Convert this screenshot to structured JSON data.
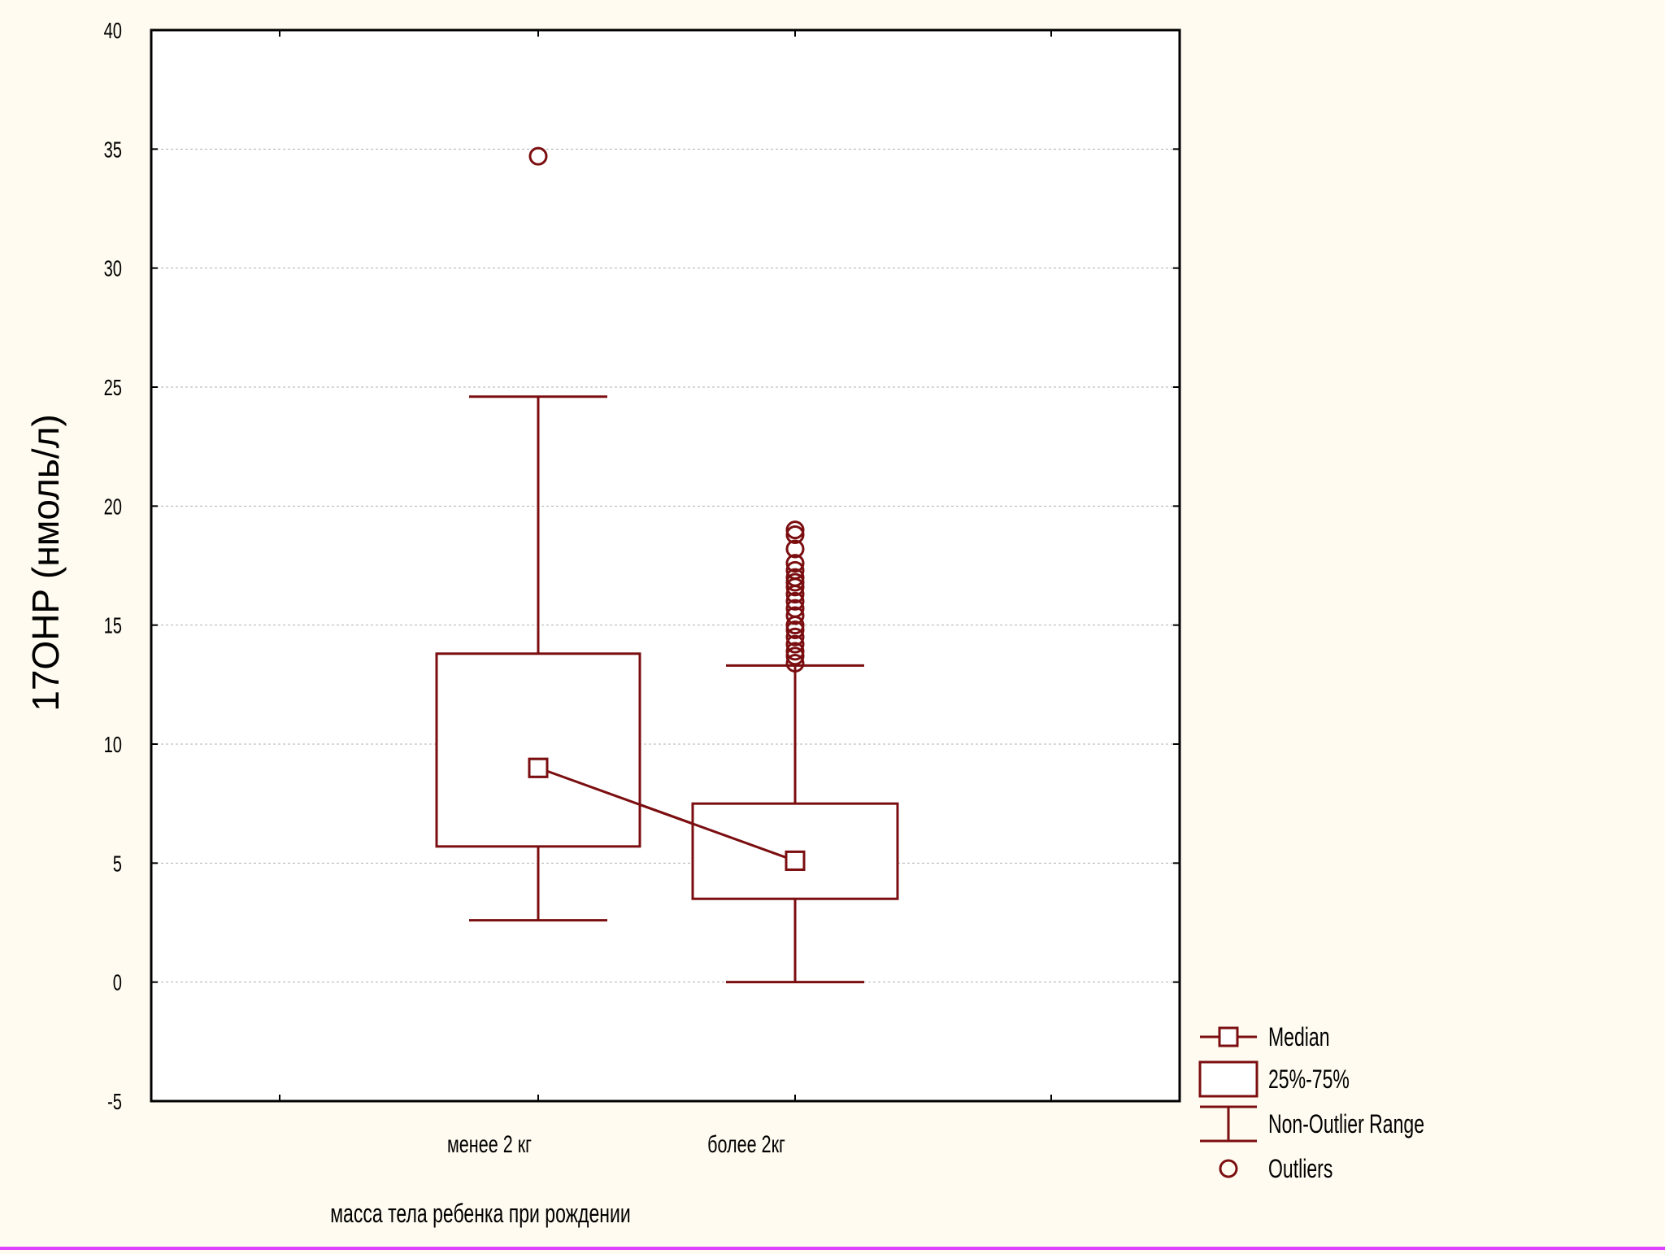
{
  "chart_data": {
    "type": "box",
    "title": "",
    "ylabel": "17OHP (нмоль/л)",
    "xlabel": "масса тела ребенка при рождении",
    "ylim": [
      -5,
      40
    ],
    "yticks": [
      -5,
      0,
      5,
      10,
      15,
      20,
      25,
      30,
      35,
      40
    ],
    "grid": true,
    "legend_position": "bottom-right",
    "categories": [
      "менее 2 кг",
      "более 2кг"
    ],
    "boxes": [
      {
        "category": "менее 2 кг",
        "whisker_low": 2.6,
        "q1": 5.7,
        "median": 9.0,
        "q3": 13.8,
        "whisker_high": 24.6,
        "outliers": [
          34.7
        ]
      },
      {
        "category": "более 2кг",
        "whisker_low": 0.0,
        "q1": 3.5,
        "median": 5.1,
        "q3": 7.5,
        "whisker_high": 13.3,
        "outliers": [
          13.4,
          13.7,
          13.9,
          14.2,
          14.5,
          14.8,
          15.0,
          15.4,
          15.7,
          16.0,
          16.3,
          16.6,
          16.8,
          17.0,
          17.3,
          17.6,
          18.2,
          18.8,
          19.0
        ]
      }
    ],
    "legend": [
      {
        "symbol": "median",
        "label": "Median"
      },
      {
        "symbol": "box",
        "label": "25%-75%"
      },
      {
        "symbol": "whisker",
        "label": "Non-Outlier Range"
      },
      {
        "symbol": "outlier",
        "label": "Outliers"
      }
    ],
    "colors": {
      "series": "#7b0e10",
      "background": "#fffbf0",
      "plot_background": "#ffffff",
      "grid": "#b0b0b0",
      "axis": "#000000",
      "bottom_rule": "#e040ff"
    }
  }
}
